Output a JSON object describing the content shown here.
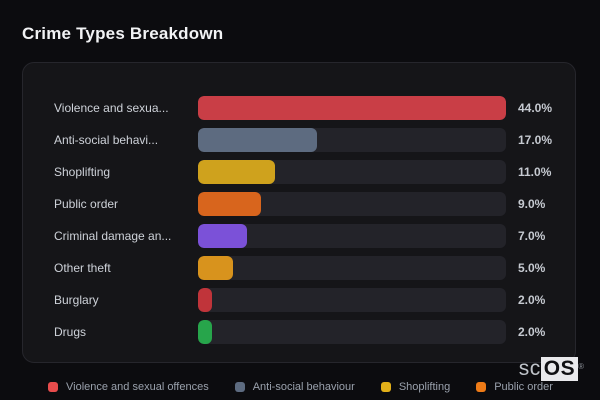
{
  "chart_data": {
    "type": "bar",
    "orientation": "horizontal",
    "title": "Crime Types Breakdown",
    "categories_display": [
      "Violence and sexua...",
      "Anti-social behavi...",
      "Shoplifting",
      "Public order",
      "Criminal damage an...",
      "Other theft",
      "Burglary",
      "Drugs"
    ],
    "values": [
      44.0,
      17.0,
      11.0,
      9.0,
      7.0,
      5.0,
      2.0,
      2.0
    ],
    "value_labels": [
      "44.0%",
      "17.0%",
      "11.0%",
      "9.0%",
      "7.0%",
      "5.0%",
      "2.0%",
      "2.0%"
    ],
    "colors": [
      "#c93e46",
      "#5d6b80",
      "#cfa21d",
      "#d8651d",
      "#7b51d8",
      "#d8931d",
      "#c0343a",
      "#27a54b"
    ],
    "xmax": 44,
    "grid": false,
    "legend_position": "bottom"
  },
  "legend": {
    "items": [
      {
        "label": "Violence and sexual offences",
        "color": "#e84c4c"
      },
      {
        "label": "Anti-social behaviour",
        "color": "#5d6b80"
      },
      {
        "label": "Shoplifting",
        "color": "#e2b019"
      },
      {
        "label": "Public order",
        "color": "#ee7b17"
      }
    ]
  },
  "branding": {
    "prefix": "sc",
    "suffix": "OS",
    "registered": "®"
  },
  "theme": {
    "background": "#0c0c0f",
    "panel": "#151518",
    "panel_border": "#26262c",
    "track": "#232329",
    "label_text": "#ced2d9",
    "value_text": "#c6cad1",
    "legend_text": "#9aa1ac",
    "title_text": "#f2f3f5"
  }
}
